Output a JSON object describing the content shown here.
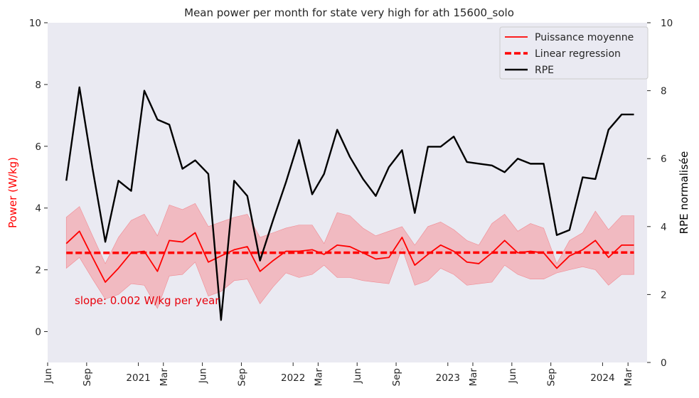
{
  "chart_data": {
    "type": "line",
    "title": "Mean power per month for state very high for ath 15600_solo",
    "ylabel_left": "Power (W/kg)",
    "ylabel_right": "RPE normalisée",
    "ylim_left": [
      -1,
      10
    ],
    "ylim_right": [
      0,
      10
    ],
    "yticks_left": [
      0,
      2,
      4,
      6,
      8,
      10
    ],
    "yticks_right": [
      0,
      2,
      4,
      6,
      8,
      10
    ],
    "x_dates": [
      "2020-07-15",
      "2020-08-15",
      "2020-09-15",
      "2020-10-15",
      "2020-11-15",
      "2020-12-15",
      "2021-01-15",
      "2021-02-15",
      "2021-03-15",
      "2021-04-15",
      "2021-05-15",
      "2021-06-15",
      "2021-07-15",
      "2021-08-15",
      "2021-09-15",
      "2021-10-15",
      "2021-11-15",
      "2021-12-15",
      "2022-01-15",
      "2022-02-15",
      "2022-03-15",
      "2022-04-15",
      "2022-05-15",
      "2022-06-15",
      "2022-07-15",
      "2022-08-15",
      "2022-09-15",
      "2022-10-15",
      "2022-11-15",
      "2022-12-15",
      "2023-01-15",
      "2023-02-15",
      "2023-03-15",
      "2023-04-15",
      "2023-05-15",
      "2023-06-15",
      "2023-07-15",
      "2023-08-15",
      "2023-09-15",
      "2023-10-15",
      "2023-11-15",
      "2023-12-15",
      "2024-01-15",
      "2024-02-15",
      "2024-03-15"
    ],
    "xticks": [
      {
        "date": "2020-06-01",
        "label": "Jun",
        "rotate": true
      },
      {
        "date": "2020-09-01",
        "label": "Sep",
        "rotate": true
      },
      {
        "date": "2021-01-01",
        "label": "2021",
        "rotate": false
      },
      {
        "date": "2021-03-01",
        "label": "Mar",
        "rotate": true
      },
      {
        "date": "2021-06-01",
        "label": "Jun",
        "rotate": true
      },
      {
        "date": "2021-09-01",
        "label": "Sep",
        "rotate": true
      },
      {
        "date": "2022-01-01",
        "label": "2022",
        "rotate": false
      },
      {
        "date": "2022-03-01",
        "label": "Mar",
        "rotate": true
      },
      {
        "date": "2022-06-01",
        "label": "Jun",
        "rotate": true
      },
      {
        "date": "2022-09-01",
        "label": "Sep",
        "rotate": true
      },
      {
        "date": "2023-01-01",
        "label": "2023",
        "rotate": false
      },
      {
        "date": "2023-03-01",
        "label": "Mar",
        "rotate": true
      },
      {
        "date": "2023-06-01",
        "label": "Jun",
        "rotate": true
      },
      {
        "date": "2023-09-01",
        "label": "Sep",
        "rotate": true
      },
      {
        "date": "2024-01-01",
        "label": "2024",
        "rotate": false
      },
      {
        "date": "2024-03-01",
        "label": "Mar",
        "rotate": true
      }
    ],
    "xlim": [
      "2020-06-01",
      "2024-04-15"
    ],
    "series": [
      {
        "name": "Puissance moyenne",
        "axis": "left",
        "color": "#ff0000",
        "values": [
          2.85,
          3.25,
          2.4,
          1.6,
          2.05,
          2.55,
          2.6,
          1.95,
          2.95,
          2.9,
          3.2,
          2.25,
          2.45,
          2.65,
          2.75,
          1.95,
          2.3,
          2.6,
          2.6,
          2.65,
          2.5,
          2.8,
          2.75,
          2.55,
          2.35,
          2.4,
          3.05,
          2.15,
          2.5,
          2.8,
          2.6,
          2.25,
          2.2,
          2.55,
          2.95,
          2.55,
          2.6,
          2.55,
          2.05,
          2.45,
          2.65,
          2.95,
          2.4,
          2.8,
          2.8
        ],
        "band_upper": [
          3.7,
          4.05,
          3.1,
          2.2,
          3.05,
          3.6,
          3.8,
          3.1,
          4.1,
          3.95,
          4.15,
          3.4,
          3.55,
          3.7,
          3.8,
          3.05,
          3.2,
          3.35,
          3.45,
          3.45,
          2.85,
          3.85,
          3.75,
          3.35,
          3.1,
          3.25,
          3.4,
          2.8,
          3.4,
          3.55,
          3.3,
          2.95,
          2.8,
          3.5,
          3.8,
          3.25,
          3.5,
          3.35,
          2.2,
          2.95,
          3.2,
          3.9,
          3.3,
          3.75,
          3.75
        ],
        "band_lower": [
          2.05,
          2.4,
          1.7,
          1.05,
          1.2,
          1.55,
          1.5,
          0.75,
          1.8,
          1.85,
          2.25,
          1.15,
          1.3,
          1.65,
          1.7,
          0.9,
          1.45,
          1.9,
          1.75,
          1.85,
          2.15,
          1.75,
          1.75,
          1.65,
          1.6,
          1.55,
          2.7,
          1.5,
          1.65,
          2.05,
          1.85,
          1.5,
          1.55,
          1.6,
          2.15,
          1.85,
          1.7,
          1.7,
          1.9,
          2.0,
          2.1,
          2.0,
          1.5,
          1.85,
          1.85
        ]
      },
      {
        "name": "Linear regression",
        "axis": "left",
        "color": "#ff0000",
        "style": "dashed",
        "values": [
          2.55,
          2.56
        ]
      },
      {
        "name": "RPE",
        "axis": "right",
        "color": "#000000",
        "values": [
          5.35,
          8.1,
          5.7,
          3.55,
          5.35,
          5.05,
          8.0,
          7.15,
          7.0,
          5.7,
          5.95,
          5.55,
          1.25,
          5.35,
          4.9,
          3.0,
          4.2,
          5.3,
          6.55,
          4.95,
          5.55,
          6.85,
          6.05,
          5.4,
          4.9,
          5.75,
          6.25,
          4.4,
          6.35,
          6.35,
          6.65,
          5.9,
          5.85,
          5.8,
          5.6,
          6.0,
          5.85,
          5.85,
          3.75,
          3.9,
          5.45,
          5.4,
          6.85,
          7.3,
          7.3
        ]
      }
    ],
    "annotation": {
      "text": "slope: 0.002 W/kg per year",
      "color": "#e8000b"
    },
    "legend": {
      "position": "top-right",
      "entries": [
        "Puissance moyenne",
        "Linear regression",
        "RPE"
      ]
    },
    "grid": false,
    "background": "#eaeaf2",
    "band_color": "#f4a0a6"
  }
}
